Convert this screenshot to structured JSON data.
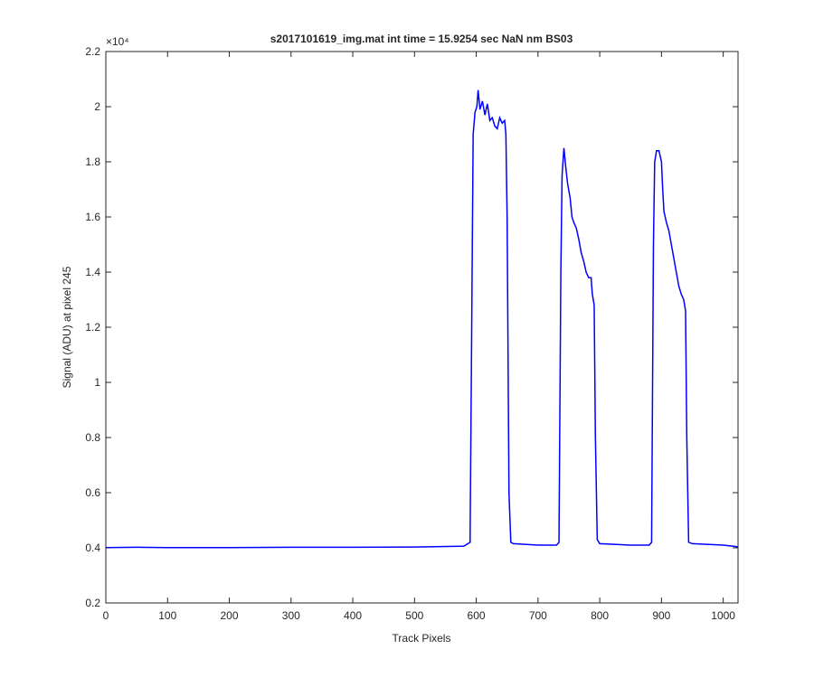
{
  "chart_data": {
    "type": "line",
    "title": "s2017101619_img.mat int time = 15.9254 sec  NaN nm BS03",
    "xlabel": "Track Pixels",
    "ylabel": "Signal (ADU) at pixel 245",
    "y_multiplier": "×10⁴",
    "xlim": [
      0,
      1024
    ],
    "ylim": [
      0.2,
      2.2
    ],
    "xticks": [
      0,
      100,
      200,
      300,
      400,
      500,
      600,
      700,
      800,
      900,
      1000
    ],
    "yticks": [
      0.2,
      0.4,
      0.6,
      0.8,
      1,
      1.2,
      1.4,
      1.6,
      1.8,
      2,
      2.2
    ],
    "color": "#0000ff",
    "x": [
      0,
      50,
      100,
      200,
      300,
      400,
      500,
      580,
      590,
      595,
      598,
      601,
      603,
      606,
      610,
      614,
      618,
      622,
      626,
      630,
      634,
      638,
      642,
      646,
      648,
      650,
      653,
      656,
      660,
      700,
      730,
      734,
      737,
      739,
      742,
      745,
      748,
      752,
      755,
      758,
      762,
      766,
      770,
      774,
      778,
      782,
      786,
      788,
      791,
      793,
      796,
      800,
      850,
      880,
      884,
      887,
      889,
      892,
      896,
      900,
      902,
      904,
      908,
      912,
      916,
      920,
      924,
      928,
      932,
      936,
      939,
      941,
      944,
      950,
      1000,
      1020,
      1024
    ],
    "values": [
      0.401,
      0.402,
      0.401,
      0.401,
      0.402,
      0.402,
      0.403,
      0.406,
      0.42,
      1.9,
      1.98,
      2.0,
      2.06,
      1.99,
      2.02,
      1.97,
      2.01,
      1.95,
      1.96,
      1.93,
      1.92,
      1.96,
      1.94,
      1.95,
      1.9,
      1.6,
      0.6,
      0.42,
      0.415,
      0.41,
      0.41,
      0.42,
      1.4,
      1.75,
      1.85,
      1.78,
      1.72,
      1.67,
      1.6,
      1.58,
      1.56,
      1.52,
      1.47,
      1.44,
      1.4,
      1.38,
      1.38,
      1.32,
      1.28,
      0.8,
      0.43,
      0.415,
      0.41,
      0.41,
      0.42,
      1.5,
      1.8,
      1.84,
      1.84,
      1.8,
      1.7,
      1.62,
      1.58,
      1.55,
      1.5,
      1.45,
      1.4,
      1.35,
      1.32,
      1.3,
      1.26,
      0.8,
      0.42,
      0.415,
      0.41,
      0.405,
      0.403
    ]
  }
}
